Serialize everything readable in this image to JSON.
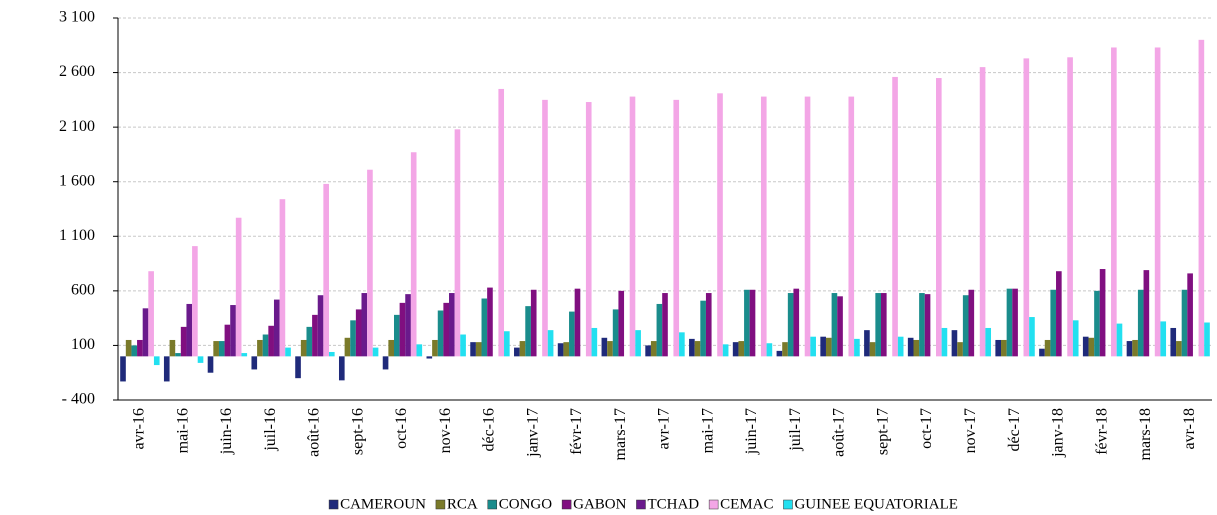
{
  "chart_data": {
    "type": "bar",
    "categories": [
      "avr-16",
      "mai-16",
      "juin-16",
      "juil-16",
      "août-16",
      "sept-16",
      "oct-16",
      "nov-16",
      "déc-16",
      "janv-17",
      "févr-17",
      "mars-17",
      "avr-17",
      "mai-17",
      "juin-17",
      "juil-17",
      "août-17",
      "sept-17",
      "oct-17",
      "nov-17",
      "déc-17",
      "janv-18",
      "févr-18",
      "mars-18",
      "avr-18"
    ],
    "series": [
      {
        "name": "CAMEROUN",
        "color": "#1f2a7a",
        "values": [
          -230,
          -230,
          -150,
          -120,
          -200,
          -220,
          -120,
          -20,
          130,
          80,
          120,
          170,
          100,
          160,
          130,
          50,
          180,
          240,
          170,
          240,
          150,
          70,
          180,
          140,
          260
        ]
      },
      {
        "name": "RCA",
        "color": "#7a7a2a",
        "values": [
          150,
          150,
          140,
          150,
          150,
          170,
          150,
          150,
          130,
          140,
          130,
          140,
          140,
          140,
          140,
          130,
          170,
          130,
          150,
          130,
          150,
          150,
          170,
          150,
          140
        ]
      },
      {
        "name": "CONGO",
        "color": "#1a8c8c",
        "values": [
          100,
          30,
          140,
          200,
          270,
          330,
          380,
          420,
          530,
          460,
          410,
          430,
          480,
          510,
          610,
          580,
          580,
          580,
          580,
          560,
          620,
          610,
          600,
          610,
          610
        ]
      },
      {
        "name": "GABON",
        "color": "#800f80",
        "values": [
          150,
          270,
          290,
          280,
          380,
          430,
          490,
          490,
          630,
          610,
          620,
          600,
          580,
          580,
          610,
          620,
          550,
          580,
          570,
          610,
          620,
          780,
          800,
          790,
          760
        ]
      },
      {
        "name": "TCHAD",
        "color": "#6a1a8c",
        "values": [
          440,
          480,
          470,
          520,
          560,
          580,
          570,
          580,
          null,
          null,
          null,
          null,
          null,
          null,
          null,
          null,
          null,
          null,
          null,
          null,
          null,
          null,
          null,
          null,
          null
        ]
      },
      {
        "name": "CEMAC",
        "color": "#f3a6e6",
        "values": [
          780,
          1010,
          1270,
          1440,
          1580,
          1710,
          1870,
          2080,
          2450,
          2350,
          2330,
          2380,
          2350,
          2410,
          2380,
          2380,
          2380,
          2560,
          2550,
          2650,
          2730,
          2740,
          2830,
          2830,
          2900
        ]
      },
      {
        "name": "GUINEE EQUATORIALE",
        "color": "#22e0f0",
        "values": [
          -80,
          -60,
          30,
          80,
          40,
          80,
          110,
          200,
          230,
          240,
          260,
          240,
          220,
          110,
          120,
          180,
          160,
          180,
          260,
          260,
          360,
          330,
          300,
          320,
          310
        ]
      }
    ],
    "ylim": [
      -400,
      3100
    ],
    "yticks": [
      {
        "value": -400,
        "label": "- 400"
      },
      100,
      600,
      {
        "value": 1100,
        "label": "1 100"
      },
      {
        "value": 1600,
        "label": "1 600"
      },
      {
        "value": 2100,
        "label": "2 100"
      },
      {
        "value": 2600,
        "label": "2 600"
      },
      {
        "value": 3100,
        "label": "3 100"
      }
    ],
    "grid": true
  }
}
